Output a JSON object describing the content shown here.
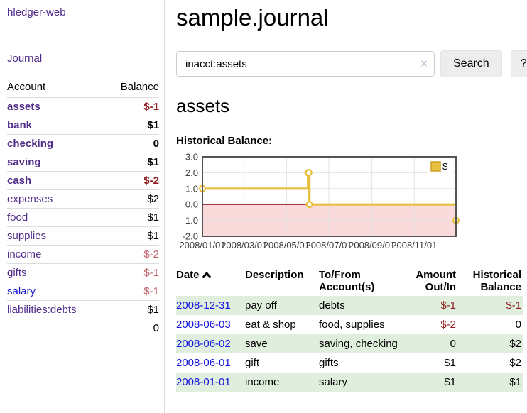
{
  "app": {
    "title": "hledger-web"
  },
  "colors": {
    "link_purple": "#512d8a",
    "link_blue": "#1414dd",
    "negative_strong": "#8f1d1d",
    "negative_muted": "#c0626e",
    "row_stripe_green": "#dfeedd",
    "chart_line_gold": "#e8c040",
    "chart_negative_region": "#fadada",
    "chart_zero_line": "#8b0000"
  },
  "sidebar": {
    "journal_link": "Journal",
    "accounts_table": {
      "headers": {
        "account": "Account",
        "balance": "Balance"
      },
      "rows": [
        {
          "name": "assets",
          "balance": "$-1",
          "depth": 1,
          "bold": true,
          "negative": "strong"
        },
        {
          "name": "bank",
          "balance": "$1",
          "depth": 2,
          "bold": true,
          "negative": "none"
        },
        {
          "name": "checking",
          "balance": "0",
          "depth": 3,
          "bold": true,
          "negative": "none"
        },
        {
          "name": "saving",
          "balance": "$1",
          "depth": 3,
          "bold": true,
          "negative": "none"
        },
        {
          "name": "cash",
          "balance": "$-2",
          "depth": 2,
          "bold": true,
          "negative": "strong"
        },
        {
          "name": "expenses",
          "balance": "$2",
          "depth": 1,
          "bold": false,
          "negative": "none"
        },
        {
          "name": "food",
          "balance": "$1",
          "depth": 2,
          "bold": false,
          "negative": "none"
        },
        {
          "name": "supplies",
          "balance": "$1",
          "depth": 2,
          "bold": false,
          "negative": "none"
        },
        {
          "name": "income",
          "balance": "$-2",
          "depth": 1,
          "bold": false,
          "negative": "muted"
        },
        {
          "name": "gifts",
          "balance": "$-1",
          "depth": 2,
          "bold": false,
          "negative": "muted"
        },
        {
          "name": "salary",
          "balance": "$-1",
          "depth": 2,
          "bold": false,
          "negative": "muted",
          "link_color": "blue"
        },
        {
          "name": "liabilities:debts",
          "balance": "$1",
          "depth": 1,
          "bold": false,
          "negative": "none"
        }
      ],
      "total": "0"
    }
  },
  "header": {
    "title": "sample.journal"
  },
  "search": {
    "value": "inacct:assets",
    "clear_icon": "×",
    "button_label": "Search",
    "help_label": "?"
  },
  "account_page": {
    "title": "assets",
    "chart_label": "Historical Balance:"
  },
  "chart_data": {
    "type": "line",
    "title": "Historical Balance",
    "step": true,
    "series": [
      {
        "name": "$",
        "color": "#e8c040",
        "points": [
          {
            "x": "2008-01-01",
            "y": 1
          },
          {
            "x": "2008-06-01",
            "y": 2
          },
          {
            "x": "2008-06-02",
            "y": 2
          },
          {
            "x": "2008-06-03",
            "y": 0
          },
          {
            "x": "2008-12-31",
            "y": -1
          }
        ]
      }
    ],
    "xlim": [
      "2008-01-01",
      "2008-12-31"
    ],
    "ylim": [
      -2,
      3
    ],
    "yticks": [
      "3.0",
      "2.0",
      "1.0",
      "0.0",
      "-1.0",
      "-2.0"
    ],
    "ytick_values": [
      3,
      2,
      1,
      0,
      -1,
      -2
    ],
    "xticks": [
      "2008/01/01",
      "2008/03/01",
      "2008/05/01",
      "2008/07/01",
      "2008/09/01",
      "2008/11/01"
    ],
    "legend_position": "top-right",
    "legend_label": "$",
    "grid": true,
    "negative_region_color": "#fadada",
    "zero_line_color": "#8b0000"
  },
  "register_table": {
    "headers": [
      "Date",
      "Description",
      "To/From Account(s)",
      "Amount Out/In",
      "Historical Balance"
    ],
    "rows": [
      {
        "date": "2008-12-31",
        "description": "pay off",
        "accounts": "debts",
        "amount": "$-1",
        "amount_negative": true,
        "balance": "$-1",
        "balance_negative": true
      },
      {
        "date": "2008-06-03",
        "description": "eat & shop",
        "accounts": "food, supplies",
        "amount": "$-2",
        "amount_negative": true,
        "balance": "0",
        "balance_negative": false
      },
      {
        "date": "2008-06-02",
        "description": "save",
        "accounts": "saving, checking",
        "amount": "0",
        "amount_negative": false,
        "balance": "$2",
        "balance_negative": false
      },
      {
        "date": "2008-06-01",
        "description": "gift",
        "accounts": "gifts",
        "amount": "$1",
        "amount_negative": false,
        "balance": "$2",
        "balance_negative": false
      },
      {
        "date": "2008-01-01",
        "description": "income",
        "accounts": "salary",
        "amount": "$1",
        "amount_negative": false,
        "balance": "$1",
        "balance_negative": false
      }
    ]
  }
}
